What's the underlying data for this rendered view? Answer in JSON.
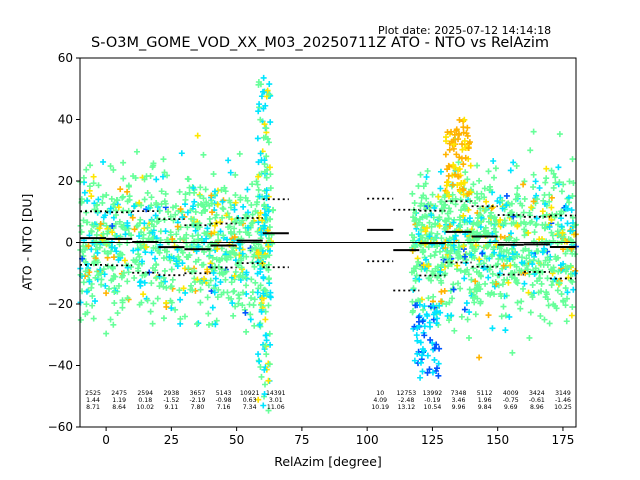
{
  "plot_date": "Plot date: 2025-07-12 14:14:18",
  "chart_data": {
    "type": "scatter",
    "title": "S-O3M_GOME_VOD_XX_M03_20250711Z ATO - NTO vs RelAzim",
    "xlabel": "RelAzim [degree]",
    "ylabel": "ATO - NTO [DU]",
    "xlim": [
      -10,
      180
    ],
    "ylim": [
      -60,
      60
    ],
    "xticks": [
      0,
      25,
      50,
      75,
      100,
      125,
      150,
      175
    ],
    "yticks": [
      -60,
      -40,
      -20,
      0,
      20,
      40,
      60
    ],
    "grid": false,
    "reference_line_y": 0,
    "marker": "+",
    "point_colors": [
      "#66ff99",
      "#00e5ff",
      "#ffe600",
      "#ffb300",
      "#0055ff"
    ],
    "bins": [
      {
        "x": 0,
        "count": "2525",
        "mean": "1.44",
        "std": "8.71"
      },
      {
        "x": 10,
        "count": "2475",
        "mean": "1.19",
        "std": "8.64"
      },
      {
        "x": 20,
        "count": "2594",
        "mean": "0.18",
        "std": "10.02"
      },
      {
        "x": 30,
        "count": "2938",
        "mean": "-1.52",
        "std": "9.11"
      },
      {
        "x": 40,
        "count": "3657",
        "mean": "-2.19",
        "std": "7.80"
      },
      {
        "x": 50,
        "count": "5143",
        "mean": "-0.98",
        "std": "7.16"
      },
      {
        "x": 60,
        "count": "10921",
        "mean": "0.63",
        "std": "7.34"
      },
      {
        "x": 70,
        "count": "14391",
        "mean": "3.01",
        "std": "11.06"
      },
      {
        "x": 110,
        "count": "10",
        "mean": "4.09",
        "std": "10.19"
      },
      {
        "x": 120,
        "count": "12753",
        "mean": "-2.48",
        "std": "13.12"
      },
      {
        "x": 130,
        "count": "13992",
        "mean": "-0.19",
        "std": "10.54"
      },
      {
        "x": 140,
        "count": "7348",
        "mean": "3.46",
        "std": "9.96"
      },
      {
        "x": 150,
        "count": "5112",
        "mean": "1.96",
        "std": "9.84"
      },
      {
        "x": 160,
        "count": "4009",
        "mean": "-0.75",
        "std": "9.69"
      },
      {
        "x": 170,
        "count": "3424",
        "mean": "-0.61",
        "std": "8.96"
      },
      {
        "x": 180,
        "count": "3149",
        "mean": "-1.46",
        "std": "10.25"
      }
    ]
  }
}
